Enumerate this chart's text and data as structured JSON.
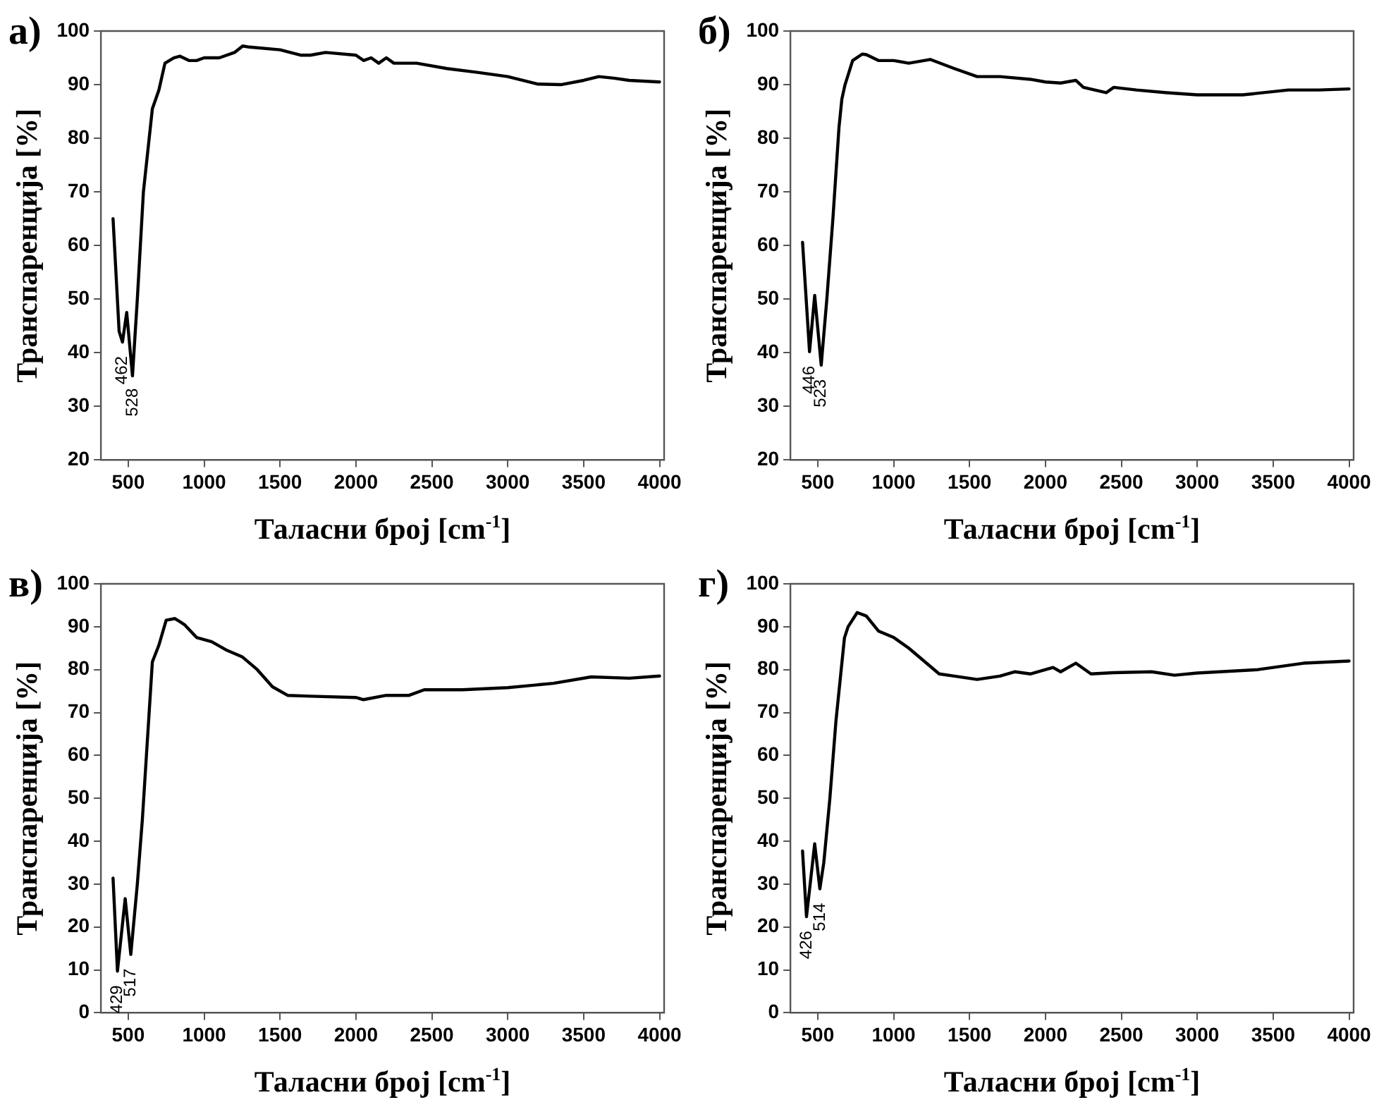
{
  "chart_data": [
    {
      "type": "line",
      "title": "а)",
      "xlabel": "Таласни број [cm$^{-1}$]",
      "ylabel": "Транспаренција [%]",
      "xlim": [
        320,
        4030
      ],
      "ylim": [
        20,
        100
      ],
      "xticks": [
        500,
        1000,
        1500,
        2000,
        2500,
        3000,
        3500,
        4000
      ],
      "yticks": [
        20,
        30,
        40,
        50,
        60,
        70,
        80,
        90,
        100
      ],
      "annotations": [
        {
          "text": "462",
          "x": 462,
          "y": 42
        },
        {
          "text": "528",
          "x": 528,
          "y": 36
        }
      ],
      "series": [
        {
          "color": "#000000",
          "x": [
            400,
            440,
            462,
            490,
            528,
            560,
            600,
            659,
            702,
            742,
            800,
            841,
            900,
            950,
            1000,
            1100,
            1200,
            1254,
            1300,
            1500,
            1635,
            1700,
            1800,
            2000,
            2050,
            2100,
            2150,
            2200,
            2250,
            2400,
            2600,
            2800,
            3000,
            3200,
            3350,
            3500,
            3600,
            3700,
            3800,
            4000
          ],
          "values": [
            65,
            44,
            42,
            47.5,
            35.7,
            50,
            70,
            85.5,
            89,
            94,
            95,
            95.3,
            94.5,
            94.5,
            95,
            95,
            96,
            97.2,
            97,
            96.5,
            95.5,
            95.5,
            96,
            95.5,
            94.5,
            95,
            94,
            95,
            94,
            94,
            93,
            92.3,
            91.5,
            90.1,
            90,
            90.8,
            91.5,
            91.2,
            90.8,
            90.5
          ]
        }
      ]
    },
    {
      "type": "line",
      "title": "б)",
      "xlabel": "Таласни број [cm$^{-1}$]",
      "ylabel": "Транспаренција [%]",
      "xlim": [
        320,
        4030
      ],
      "ylim": [
        20,
        100
      ],
      "xticks": [
        500,
        1000,
        1500,
        2000,
        2500,
        3000,
        3500,
        4000
      ],
      "yticks": [
        20,
        30,
        40,
        50,
        60,
        70,
        80,
        90,
        100
      ],
      "annotations": [
        {
          "text": "446",
          "x": 446,
          "y": 40.2
        },
        {
          "text": "523",
          "x": 523,
          "y": 37.7
        }
      ],
      "series": [
        {
          "color": "#000000",
          "x": [
            400,
            446,
            480,
            523,
            560,
            600,
            640,
            659,
            680,
            730,
            793,
            820,
            900,
            1000,
            1100,
            1241,
            1400,
            1550,
            1700,
            1900,
            2000,
            2100,
            2200,
            2250,
            2400,
            2450,
            2600,
            2800,
            3000,
            3300,
            3600,
            3800,
            4000
          ],
          "values": [
            60.6,
            40.2,
            50.7,
            37.7,
            50,
            65,
            82,
            87.3,
            90,
            94.5,
            95.7,
            95.6,
            94.5,
            94.5,
            94,
            94.7,
            93,
            91.5,
            91.5,
            91,
            90.5,
            90.3,
            90.8,
            89.5,
            88.5,
            89.5,
            89,
            88.5,
            88.1,
            88.1,
            89,
            89,
            89.2
          ]
        }
      ]
    },
    {
      "type": "line",
      "title": "в)",
      "xlabel": "Таласни број [cm$^{-1}$]",
      "ylabel": "Транспаренција [%]",
      "xlim": [
        320,
        4030
      ],
      "ylim": [
        0,
        100
      ],
      "xticks": [
        500,
        1000,
        1500,
        2000,
        2500,
        3000,
        3500,
        4000
      ],
      "yticks": [
        0,
        10,
        20,
        30,
        40,
        50,
        60,
        70,
        80,
        90,
        100
      ],
      "annotations": [
        {
          "text": "429",
          "x": 429,
          "y": 9.7
        },
        {
          "text": "517",
          "x": 517,
          "y": 13.6
        }
      ],
      "series": [
        {
          "color": "#000000",
          "x": [
            400,
            429,
            480,
            517,
            560,
            593,
            659,
            702,
            750,
            808,
            870,
            950,
            1050,
            1150,
            1250,
            1350,
            1450,
            1550,
            1700,
            2000,
            2050,
            2200,
            2350,
            2450,
            2700,
            3000,
            3300,
            3550,
            3800,
            4000
          ],
          "values": [
            31.4,
            9.7,
            26.6,
            13.6,
            30,
            45,
            81.8,
            85.7,
            91.5,
            91.9,
            90.5,
            87.5,
            86.5,
            84.5,
            83,
            80,
            76,
            74,
            73.8,
            73.5,
            73,
            74,
            74,
            75.3,
            75.3,
            75.8,
            76.8,
            78.3,
            78,
            78.5
          ]
        }
      ]
    },
    {
      "type": "line",
      "title": "г)",
      "xlabel": "Таласни број [cm$^{-1}$]",
      "ylabel": "Транспаренција [%]",
      "xlim": [
        320,
        4030
      ],
      "ylim": [
        0,
        100
      ],
      "xticks": [
        500,
        1000,
        1500,
        2000,
        2500,
        3000,
        3500,
        4000
      ],
      "yticks": [
        0,
        10,
        20,
        30,
        40,
        50,
        60,
        70,
        80,
        90,
        100
      ],
      "annotations": [
        {
          "text": "426",
          "x": 426,
          "y": 22.4
        },
        {
          "text": "514",
          "x": 514,
          "y": 28.9
        }
      ],
      "series": [
        {
          "color": "#000000",
          "x": [
            400,
            426,
            480,
            514,
            540,
            580,
            620,
            676,
            700,
            760,
            820,
            900,
            1000,
            1100,
            1200,
            1300,
            1400,
            1550,
            1700,
            1800,
            1900,
            2050,
            2100,
            2200,
            2300,
            2450,
            2700,
            2850,
            3000,
            3400,
            3700,
            4000
          ],
          "values": [
            37.7,
            22.4,
            39.4,
            28.9,
            35,
            50,
            68,
            87.4,
            90,
            93.3,
            92.5,
            89,
            87.5,
            85,
            82,
            79,
            78.5,
            77.7,
            78.5,
            79.5,
            79,
            80.5,
            79.5,
            81.5,
            79,
            79.3,
            79.5,
            78.7,
            79.2,
            80,
            81.5,
            82
          ]
        }
      ]
    }
  ]
}
